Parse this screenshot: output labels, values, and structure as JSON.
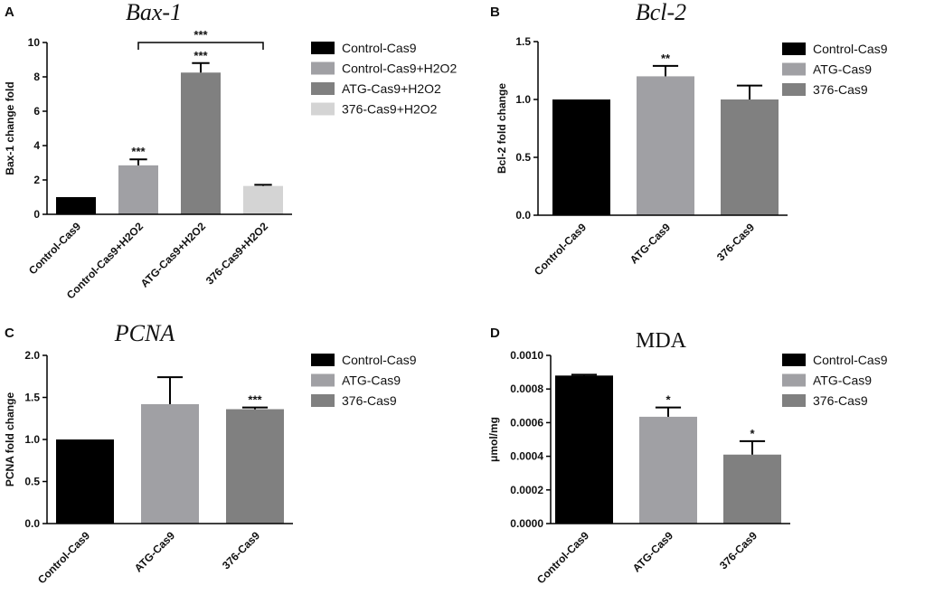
{
  "chart_data": [
    {
      "panel": "A",
      "type": "bar",
      "title": "Bax-1",
      "title_style": "italic",
      "ylabel": "Bax-1 change fold",
      "xlabel": "",
      "ylim": [
        0,
        10
      ],
      "yticks": [
        "0",
        "2",
        "4",
        "6",
        "8",
        "10"
      ],
      "categories": [
        "Control-Cas9",
        "Control-Cas9+H2O2",
        "ATG-Cas9+H2O2",
        "376-Cas9+H2O2"
      ],
      "values": [
        1.0,
        2.85,
        8.25,
        1.65
      ],
      "errors": [
        0,
        0.35,
        0.55,
        0.07
      ],
      "colors": [
        "#000000",
        "#a0a0a4",
        "#808080",
        "#d4d4d4"
      ],
      "significance": [
        "",
        "***",
        "***",
        ""
      ],
      "bracket": {
        "from": 1,
        "to": 3,
        "label": "***"
      },
      "legend": [
        "Control-Cas9",
        "Control-Cas9+H2O2",
        "ATG-Cas9+H2O2",
        "376-Cas9+H2O2"
      ],
      "legend_position": "right"
    },
    {
      "panel": "B",
      "type": "bar",
      "title": "Bcl-2",
      "title_style": "italic",
      "ylabel": "Bcl-2 fold change",
      "xlabel": "",
      "ylim": [
        0,
        1.5
      ],
      "yticks": [
        "0.0",
        "0.5",
        "1.0",
        "1.5"
      ],
      "categories": [
        "Control-Cas9",
        "ATG-Cas9",
        "376-Cas9"
      ],
      "values": [
        1.0,
        1.2,
        1.0
      ],
      "errors": [
        0,
        0.09,
        0.12
      ],
      "colors": [
        "#000000",
        "#a0a0a4",
        "#808080"
      ],
      "significance": [
        "",
        "**",
        ""
      ],
      "legend": [
        "Control-Cas9",
        "ATG-Cas9",
        "376-Cas9"
      ],
      "legend_position": "right"
    },
    {
      "panel": "C",
      "type": "bar",
      "title": "PCNA",
      "title_style": "italic",
      "ylabel": "PCNA fold change",
      "xlabel": "",
      "ylim": [
        0,
        2.0
      ],
      "yticks": [
        "0.0",
        "0.5",
        "1.0",
        "1.5",
        "2.0"
      ],
      "categories": [
        "Control-Cas9",
        "ATG-Cas9",
        "376-Cas9"
      ],
      "values": [
        1.0,
        1.42,
        1.36
      ],
      "errors": [
        0,
        0.32,
        0.02
      ],
      "colors": [
        "#000000",
        "#a0a0a4",
        "#808080"
      ],
      "significance": [
        "",
        "",
        "***"
      ],
      "legend": [
        "Control-Cas9",
        "ATG-Cas9",
        "376-Cas9"
      ],
      "legend_position": "right"
    },
    {
      "panel": "D",
      "type": "bar",
      "title": "MDA",
      "title_style": "normal",
      "ylabel": "μmol/mg",
      "xlabel": "",
      "ylim": [
        0,
        0.001
      ],
      "yticks": [
        "0.0000",
        "0.0002",
        "0.0004",
        "0.0006",
        "0.0008",
        "0.0010"
      ],
      "categories": [
        "Control-Cas9",
        "ATG-Cas9",
        "376-Cas9"
      ],
      "values": [
        0.00088,
        0.000635,
        0.00041
      ],
      "errors": [
        5e-06,
        5.5e-05,
        8e-05
      ],
      "colors": [
        "#000000",
        "#a0a0a4",
        "#808080"
      ],
      "significance": [
        "",
        "*",
        "*"
      ],
      "legend": [
        "Control-Cas9",
        "ATG-Cas9",
        "376-Cas9"
      ],
      "legend_position": "right"
    }
  ]
}
